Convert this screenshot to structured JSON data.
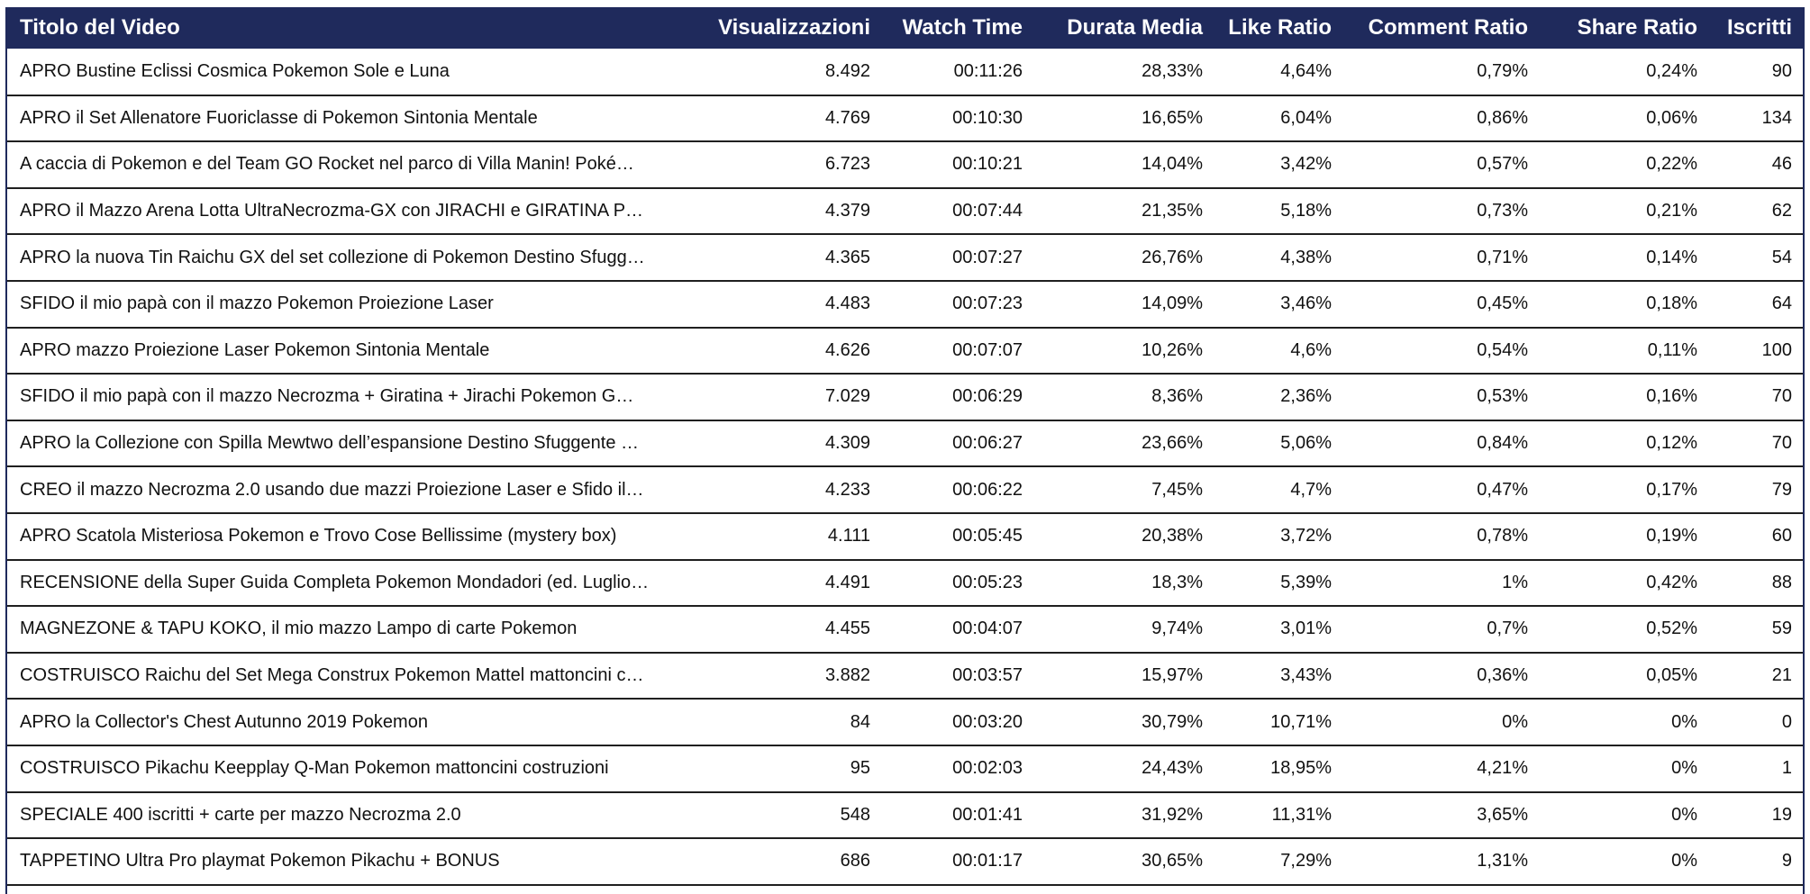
{
  "columns": {
    "title": "Titolo del Video",
    "views": "Visualizzazioni",
    "watch_time": "Watch Time",
    "avg_duration": "Durata Media",
    "like_ratio": "Like Ratio",
    "comment_ratio": "Comment Ratio",
    "share_ratio": "Share Ratio",
    "subscribers": "Iscritti"
  },
  "rows": [
    {
      "title": "APRO Bustine Eclissi Cosmica Pokemon Sole e Luna",
      "views": "8.492",
      "watch_time": "00:11:26",
      "avg_duration": "28,33%",
      "like_ratio": "4,64%",
      "comment_ratio": "0,79%",
      "share_ratio": "0,24%",
      "subscribers": "90"
    },
    {
      "title": "APRO il Set Allenatore Fuoriclasse di Pokemon Sintonia Mentale",
      "views": "4.769",
      "watch_time": "00:10:30",
      "avg_duration": "16,65%",
      "like_ratio": "6,04%",
      "comment_ratio": "0,86%",
      "share_ratio": "0,06%",
      "subscribers": "134"
    },
    {
      "title": "A caccia di Pokemon e del Team GO Rocket nel parco di Villa Manin! Poké…",
      "views": "6.723",
      "watch_time": "00:10:21",
      "avg_duration": "14,04%",
      "like_ratio": "3,42%",
      "comment_ratio": "0,57%",
      "share_ratio": "0,22%",
      "subscribers": "46"
    },
    {
      "title": "APRO il Mazzo Arena Lotta UltraNecrozma-GX con JIRACHI e GIRATINA P…",
      "views": "4.379",
      "watch_time": "00:07:44",
      "avg_duration": "21,35%",
      "like_ratio": "5,18%",
      "comment_ratio": "0,73%",
      "share_ratio": "0,21%",
      "subscribers": "62"
    },
    {
      "title": "APRO la nuova Tin Raichu GX del set collezione di Pokemon Destino Sfugg…",
      "views": "4.365",
      "watch_time": "00:07:27",
      "avg_duration": "26,76%",
      "like_ratio": "4,38%",
      "comment_ratio": "0,71%",
      "share_ratio": "0,14%",
      "subscribers": "54"
    },
    {
      "title": "SFIDO il mio papà con il mazzo Pokemon Proiezione Laser",
      "views": "4.483",
      "watch_time": "00:07:23",
      "avg_duration": "14,09%",
      "like_ratio": "3,46%",
      "comment_ratio": "0,45%",
      "share_ratio": "0,18%",
      "subscribers": "64"
    },
    {
      "title": "APRO mazzo Proiezione Laser Pokemon Sintonia Mentale",
      "views": "4.626",
      "watch_time": "00:07:07",
      "avg_duration": "10,26%",
      "like_ratio": "4,6%",
      "comment_ratio": "0,54%",
      "share_ratio": "0,11%",
      "subscribers": "100"
    },
    {
      "title": "SFIDO il mio papà con il mazzo Necrozma + Giratina + Jirachi Pokemon G…",
      "views": "7.029",
      "watch_time": "00:06:29",
      "avg_duration": "8,36%",
      "like_ratio": "2,36%",
      "comment_ratio": "0,53%",
      "share_ratio": "0,16%",
      "subscribers": "70"
    },
    {
      "title": "APRO la Collezione con Spilla Mewtwo dell’espansione Destino Sfuggente …",
      "views": "4.309",
      "watch_time": "00:06:27",
      "avg_duration": "23,66%",
      "like_ratio": "5,06%",
      "comment_ratio": "0,84%",
      "share_ratio": "0,12%",
      "subscribers": "70"
    },
    {
      "title": "CREO il mazzo Necrozma 2.0 usando due mazzi Proiezione Laser e Sfido il…",
      "views": "4.233",
      "watch_time": "00:06:22",
      "avg_duration": "7,45%",
      "like_ratio": "4,7%",
      "comment_ratio": "0,47%",
      "share_ratio": "0,17%",
      "subscribers": "79"
    },
    {
      "title": "APRO Scatola Misteriosa Pokemon e Trovo Cose Bellissime (mystery box)",
      "views": "4.111",
      "watch_time": "00:05:45",
      "avg_duration": "20,38%",
      "like_ratio": "3,72%",
      "comment_ratio": "0,78%",
      "share_ratio": "0,19%",
      "subscribers": "60"
    },
    {
      "title": "RECENSIONE della Super Guida Completa Pokemon Mondadori (ed. Luglio…",
      "views": "4.491",
      "watch_time": "00:05:23",
      "avg_duration": "18,3%",
      "like_ratio": "5,39%",
      "comment_ratio": "1%",
      "share_ratio": "0,42%",
      "subscribers": "88"
    },
    {
      "title": "MAGNEZONE & TAPU KOKO, il mio mazzo Lampo di carte Pokemon",
      "views": "4.455",
      "watch_time": "00:04:07",
      "avg_duration": "9,74%",
      "like_ratio": "3,01%",
      "comment_ratio": "0,7%",
      "share_ratio": "0,52%",
      "subscribers": "59"
    },
    {
      "title": "COSTRUISCO Raichu del Set Mega Construx Pokemon Mattel mattoncini c…",
      "views": "3.882",
      "watch_time": "00:03:57",
      "avg_duration": "15,97%",
      "like_ratio": "3,43%",
      "comment_ratio": "0,36%",
      "share_ratio": "0,05%",
      "subscribers": "21"
    },
    {
      "title": "APRO la Collector's Chest Autunno 2019 Pokemon",
      "views": "84",
      "watch_time": "00:03:20",
      "avg_duration": "30,79%",
      "like_ratio": "10,71%",
      "comment_ratio": "0%",
      "share_ratio": "0%",
      "subscribers": "0"
    },
    {
      "title": "COSTRUISCO Pikachu Keepplay Q-Man Pokemon mattoncini costruzioni",
      "views": "95",
      "watch_time": "00:02:03",
      "avg_duration": "24,43%",
      "like_ratio": "18,95%",
      "comment_ratio": "4,21%",
      "share_ratio": "0%",
      "subscribers": "1"
    },
    {
      "title": "SPECIALE 400 iscritti + carte per mazzo Necrozma 2.0",
      "views": "548",
      "watch_time": "00:01:41",
      "avg_duration": "31,92%",
      "like_ratio": "11,31%",
      "comment_ratio": "3,65%",
      "share_ratio": "0%",
      "subscribers": "19"
    },
    {
      "title": "TAPPETINO Ultra Pro playmat Pokemon Pikachu + BONUS",
      "views": "686",
      "watch_time": "00:01:17",
      "avg_duration": "30,65%",
      "like_ratio": "7,29%",
      "comment_ratio": "1,31%",
      "share_ratio": "0%",
      "subscribers": "9"
    }
  ]
}
